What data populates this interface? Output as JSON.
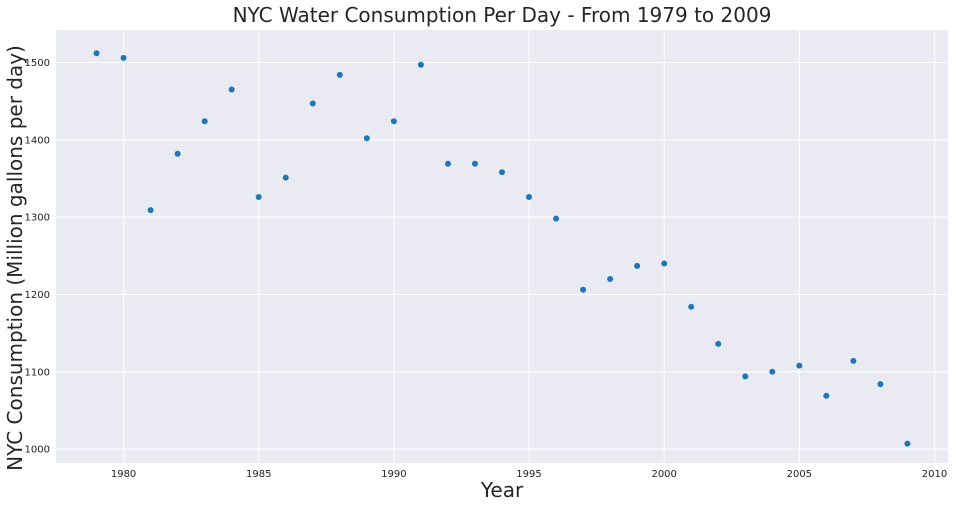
{
  "chart_data": {
    "type": "scatter",
    "title": "NYC Water Consumption Per Day - From 1979 to 2009",
    "xlabel": "Year",
    "ylabel": "NYC Consumption (Million gallons per day)",
    "xlim": [
      1977.5,
      2010.5
    ],
    "ylim": [
      982,
      1542
    ],
    "xticks": [
      1980,
      1985,
      1990,
      1995,
      2000,
      2005,
      2010
    ],
    "yticks": [
      1000,
      1100,
      1200,
      1300,
      1400,
      1500
    ],
    "grid": true,
    "background_color": "#EAEAF2",
    "grid_color": "#FFFFFF",
    "marker_color": "#1F77B4",
    "x": [
      1979,
      1980,
      1981,
      1982,
      1983,
      1984,
      1985,
      1986,
      1987,
      1988,
      1989,
      1990,
      1991,
      1992,
      1993,
      1994,
      1995,
      1996,
      1997,
      1998,
      1999,
      2000,
      2001,
      2002,
      2003,
      2004,
      2005,
      2006,
      2007,
      2008,
      2009
    ],
    "y": [
      1512,
      1506,
      1309,
      1382,
      1424,
      1465,
      1326,
      1351,
      1447,
      1484,
      1402,
      1424,
      1497,
      1369,
      1369,
      1358,
      1326,
      1298,
      1206,
      1220,
      1237,
      1240,
      1184,
      1136,
      1094,
      1100,
      1108,
      1069,
      1114,
      1084,
      1007
    ]
  }
}
